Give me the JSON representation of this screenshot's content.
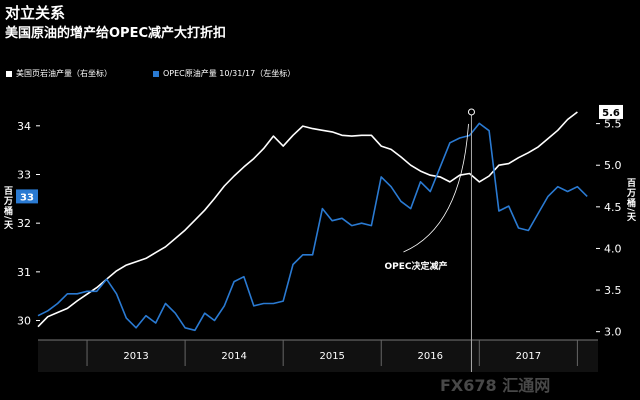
{
  "chart_data": {
    "type": "line",
    "title": "对立关系",
    "subtitle": "美国原油的增产给OPEC减产大打折扣",
    "ylabel_left": "百万桶/天",
    "ylabel_right": "百万桶/天",
    "left_ticks": [
      "30",
      "31",
      "32",
      "33",
      "34"
    ],
    "right_ticks": [
      "3.0",
      "3.5",
      "4.0",
      "4.5",
      "5.0",
      "5.5"
    ],
    "x_ticks": [
      "2013",
      "2014",
      "2015",
      "2016",
      "2017"
    ],
    "left_ylim": [
      29.6,
      34.9
    ],
    "right_ylim": [
      2.9,
      6.0
    ],
    "series": [
      {
        "name": "美国页岩油产量（右坐标）",
        "axis": "right",
        "color": "#ffffff",
        "end_label": "5.6",
        "points": [
          [
            2012.5,
            3.06
          ],
          [
            2012.6,
            3.18
          ],
          [
            2012.7,
            3.23
          ],
          [
            2012.8,
            3.28
          ],
          [
            2012.9,
            3.37
          ],
          [
            2013.0,
            3.45
          ],
          [
            2013.1,
            3.53
          ],
          [
            2013.2,
            3.63
          ],
          [
            2013.3,
            3.73
          ],
          [
            2013.4,
            3.8
          ],
          [
            2013.5,
            3.84
          ],
          [
            2013.6,
            3.88
          ],
          [
            2013.7,
            3.95
          ],
          [
            2013.8,
            4.02
          ],
          [
            2013.9,
            4.12
          ],
          [
            2014.0,
            4.22
          ],
          [
            2014.1,
            4.34
          ],
          [
            2014.2,
            4.46
          ],
          [
            2014.3,
            4.6
          ],
          [
            2014.4,
            4.75
          ],
          [
            2014.5,
            4.87
          ],
          [
            2014.6,
            4.98
          ],
          [
            2014.7,
            5.08
          ],
          [
            2014.8,
            5.2
          ],
          [
            2014.9,
            5.35
          ],
          [
            2015.0,
            5.23
          ],
          [
            2015.1,
            5.36
          ],
          [
            2015.2,
            5.47
          ],
          [
            2015.3,
            5.44
          ],
          [
            2015.4,
            5.42
          ],
          [
            2015.5,
            5.4
          ],
          [
            2015.6,
            5.36
          ],
          [
            2015.7,
            5.35
          ],
          [
            2015.8,
            5.36
          ],
          [
            2015.9,
            5.36
          ],
          [
            2016.0,
            5.23
          ],
          [
            2016.1,
            5.19
          ],
          [
            2016.2,
            5.1
          ],
          [
            2016.3,
            5.0
          ],
          [
            2016.4,
            4.93
          ],
          [
            2016.5,
            4.88
          ],
          [
            2016.6,
            4.86
          ],
          [
            2016.7,
            4.8
          ],
          [
            2016.8,
            4.88
          ],
          [
            2016.9,
            4.9
          ],
          [
            2017.0,
            4.8
          ],
          [
            2017.1,
            4.87
          ],
          [
            2017.2,
            5.0
          ],
          [
            2017.3,
            5.02
          ],
          [
            2017.4,
            5.09
          ],
          [
            2017.5,
            5.15
          ],
          [
            2017.6,
            5.22
          ],
          [
            2017.7,
            5.32
          ],
          [
            2017.8,
            5.42
          ],
          [
            2017.9,
            5.55
          ],
          [
            2018.0,
            5.64
          ]
        ]
      },
      {
        "name": "OPEC原油产量 10/31/17（左坐标）",
        "axis": "left",
        "color": "#2a7ad2",
        "end_label": "33",
        "points": [
          [
            2012.5,
            30.1
          ],
          [
            2012.6,
            30.2
          ],
          [
            2012.7,
            30.35
          ],
          [
            2012.8,
            30.55
          ],
          [
            2012.9,
            30.55
          ],
          [
            2013.0,
            30.6
          ],
          [
            2013.1,
            30.6
          ],
          [
            2013.2,
            30.85
          ],
          [
            2013.3,
            30.55
          ],
          [
            2013.4,
            30.05
          ],
          [
            2013.5,
            29.85
          ],
          [
            2013.6,
            30.1
          ],
          [
            2013.7,
            29.95
          ],
          [
            2013.8,
            30.35
          ],
          [
            2013.9,
            30.15
          ],
          [
            2014.0,
            29.85
          ],
          [
            2014.1,
            29.8
          ],
          [
            2014.2,
            30.15
          ],
          [
            2014.3,
            30.0
          ],
          [
            2014.4,
            30.3
          ],
          [
            2014.5,
            30.8
          ],
          [
            2014.6,
            30.9
          ],
          [
            2014.7,
            30.3
          ],
          [
            2014.8,
            30.35
          ],
          [
            2014.9,
            30.35
          ],
          [
            2015.0,
            30.4
          ],
          [
            2015.1,
            31.15
          ],
          [
            2015.2,
            31.35
          ],
          [
            2015.3,
            31.35
          ],
          [
            2015.4,
            32.3
          ],
          [
            2015.5,
            32.05
          ],
          [
            2015.6,
            32.1
          ],
          [
            2015.7,
            31.95
          ],
          [
            2015.8,
            32.0
          ],
          [
            2015.9,
            31.95
          ],
          [
            2016.0,
            32.95
          ],
          [
            2016.1,
            32.75
          ],
          [
            2016.2,
            32.45
          ],
          [
            2016.3,
            32.3
          ],
          [
            2016.4,
            32.85
          ],
          [
            2016.5,
            32.65
          ],
          [
            2016.6,
            33.15
          ],
          [
            2016.7,
            33.65
          ],
          [
            2016.8,
            33.75
          ],
          [
            2016.9,
            33.8
          ],
          [
            2017.0,
            34.05
          ],
          [
            2017.1,
            33.9
          ],
          [
            2017.2,
            32.25
          ],
          [
            2017.3,
            32.35
          ],
          [
            2017.4,
            31.9
          ],
          [
            2017.5,
            31.85
          ],
          [
            2017.6,
            32.2
          ],
          [
            2017.7,
            32.55
          ],
          [
            2017.8,
            32.75
          ],
          [
            2017.9,
            32.65
          ],
          [
            2018.0,
            32.75
          ],
          [
            2018.1,
            32.55
          ]
        ]
      }
    ],
    "annotation": {
      "text": "OPEC决定减产",
      "x": 2016.92,
      "y_right": 5.64
    },
    "grid": false,
    "legend_position": "top-left"
  },
  "watermark": "FX678 汇通网",
  "colors": {
    "background": "#000000",
    "us": "#ffffff",
    "opec": "#2a7ad2"
  }
}
